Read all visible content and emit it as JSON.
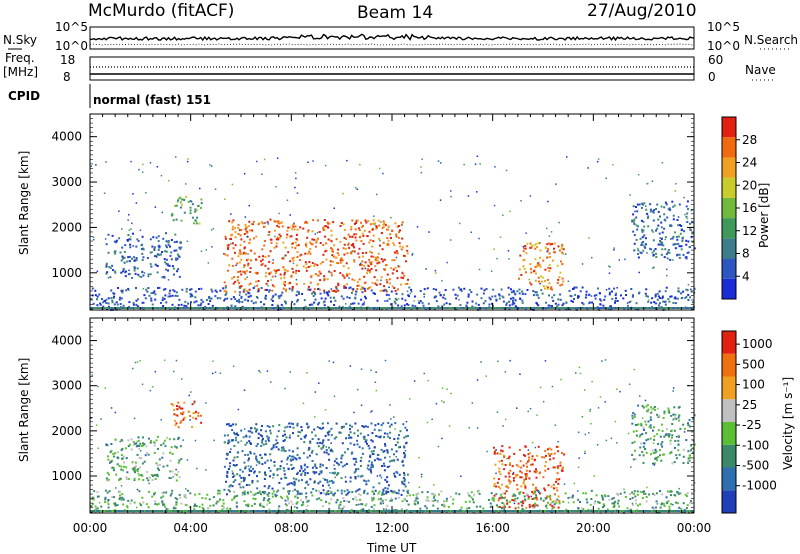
{
  "header": {
    "station": "McMurdo (fitACF)",
    "beam": "Beam 14",
    "date": "27/Aug/2010"
  },
  "noise_panel": {
    "left_label": "N.Sky",
    "right_label": "N.Search",
    "ticks_left": [
      "10^5",
      "10^0"
    ],
    "ticks_right": [
      "10^5",
      "10^0"
    ]
  },
  "freq_panel": {
    "left_label_1": "Freq.",
    "left_label_2": "[MHz]",
    "right_label": "Nave",
    "ticks_left": [
      "18",
      "8"
    ],
    "ticks_right": [
      "60",
      "0"
    ]
  },
  "cpid": {
    "label": "CPID",
    "value": "normal (fast) 151"
  },
  "chart_data": [
    {
      "type": "heatmap",
      "name": "power",
      "ylabel": "Slant Range [km]",
      "ylim": [
        180,
        4500
      ],
      "yticks": [
        "1000",
        "2000",
        "3000",
        "4000"
      ],
      "colorbar_label": "Power [dB]",
      "colorbar_ticks": [
        "4",
        "8",
        "12",
        "16",
        "20",
        "24",
        "28"
      ],
      "colorbar_colors": [
        "#1a2bd8",
        "#2e56c0",
        "#3c7d8a",
        "#3f9a5a",
        "#6fba3c",
        "#c9cc2a",
        "#f0a020",
        "#f06a10",
        "#e02010"
      ],
      "scatter_bands": [
        {
          "t": [
            0.6,
            3.6
          ],
          "r": [
            900,
            1900
          ],
          "level": 0.2
        },
        {
          "t": [
            3.2,
            4.4
          ],
          "r": [
            2100,
            2700
          ],
          "level": 0.4
        },
        {
          "t": [
            5.3,
            12.6
          ],
          "r": [
            600,
            2200
          ],
          "level": 0.85
        },
        {
          "t": [
            17.0,
            18.8
          ],
          "r": [
            650,
            1700
          ],
          "level": 0.8
        },
        {
          "t": [
            21.5,
            24.0
          ],
          "r": [
            1300,
            2600
          ],
          "level": 0.2
        },
        {
          "t": [
            0.0,
            24.0
          ],
          "r": [
            200,
            700
          ],
          "level": 0.15
        }
      ]
    },
    {
      "type": "heatmap",
      "name": "velocity",
      "ylabel": "Slant Range [km]",
      "xlabel": "Time UT",
      "ylim": [
        180,
        4500
      ],
      "xlim": [
        "00:00",
        "24:00"
      ],
      "yticks": [
        "1000",
        "2000",
        "3000",
        "4000"
      ],
      "xticks": [
        "00:00",
        "04:00",
        "08:00",
        "12:00",
        "16:00",
        "20:00",
        "00:00"
      ],
      "colorbar_label": "Velocity [m s⁻¹]",
      "colorbar_ticks": [
        "1000",
        "500",
        "100",
        "25",
        "-25",
        "-100",
        "-500",
        "-1000"
      ],
      "colorbar_colors": [
        "#1f3fb8",
        "#2f6fb0",
        "#3a8a6a",
        "#5bbf35",
        "#c0c0c0",
        "#f0a020",
        "#f07010",
        "#e02010"
      ],
      "scatter_bands": [
        {
          "t": [
            0.6,
            3.6
          ],
          "r": [
            900,
            1900
          ],
          "level": 0.4
        },
        {
          "t": [
            3.2,
            4.4
          ],
          "r": [
            2100,
            2700
          ],
          "level": 0.85
        },
        {
          "t": [
            5.3,
            12.6
          ],
          "r": [
            600,
            2200
          ],
          "level": 0.15
        },
        {
          "t": [
            16.0,
            18.8
          ],
          "r": [
            300,
            1700
          ],
          "level": 0.85
        },
        {
          "t": [
            21.5,
            24.0
          ],
          "r": [
            1300,
            2600
          ],
          "level": 0.35
        },
        {
          "t": [
            0.0,
            24.0
          ],
          "r": [
            200,
            700
          ],
          "level": 0.4
        }
      ]
    }
  ]
}
